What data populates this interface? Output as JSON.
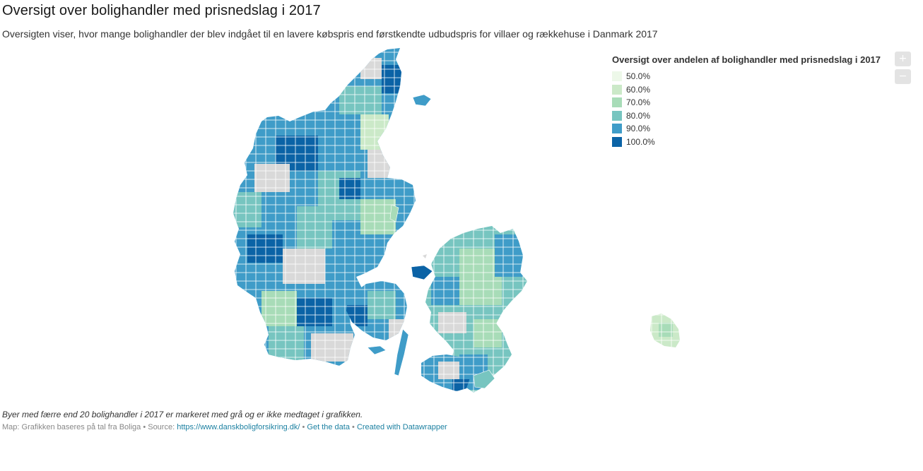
{
  "header": {
    "title": "Oversigt over bolighandler med prisnedslag i 2017",
    "subtitle": "Oversigten viser, hvor mange bolighandler der blev indgået til en lavere købspris end førstkendte udbudspris for villaer og rækkehuse i Danmark 2017"
  },
  "legend": {
    "title": "Oversigt over andelen af bolighandler med prisnedslag i 2017",
    "items": [
      {
        "label": "50.0%",
        "color": "#edf8e9"
      },
      {
        "label": "60.0%",
        "color": "#cbe9c8"
      },
      {
        "label": "70.0%",
        "color": "#a8dcb8"
      },
      {
        "label": "80.0%",
        "color": "#77c5c0"
      },
      {
        "label": "90.0%",
        "color": "#3f9cc8"
      },
      {
        "label": "100.0%",
        "color": "#0b63a6"
      }
    ],
    "no_data_color": "#d9d9d9"
  },
  "zoom": {
    "in_label": "+",
    "out_label": "−"
  },
  "footer": {
    "note": "Byer med færre end 20 bolighandler i 2017 er markeret med grå og er ikke medtaget i grafikken.",
    "map_source_prefix": "Map: Grafikken baseres på tal fra Boliga • Source: ",
    "source_link": "https://www.danskboligforsikring.dk/",
    "sep1": " • ",
    "get_data": "Get the data",
    "sep2": " • ",
    "created_with": "Created with Datawrapper"
  }
}
